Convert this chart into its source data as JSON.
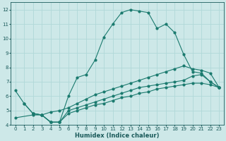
{
  "xlabel": "Humidex (Indice chaleur)",
  "xlim": [
    -0.5,
    23.5
  ],
  "ylim": [
    4,
    12.5
  ],
  "yticks": [
    4,
    5,
    6,
    7,
    8,
    9,
    10,
    11,
    12
  ],
  "xticks": [
    0,
    1,
    2,
    3,
    4,
    5,
    6,
    7,
    8,
    9,
    10,
    11,
    12,
    13,
    14,
    15,
    16,
    17,
    18,
    19,
    20,
    21,
    22,
    23
  ],
  "bg_color": "#cde8e8",
  "grid_color": "#b0d8d8",
  "line_color": "#1a7a6e",
  "lines": [
    {
      "x": [
        0,
        1,
        2,
        3,
        4,
        5,
        6,
        7,
        8,
        9,
        10,
        11,
        12,
        13,
        14,
        15,
        16,
        17,
        18,
        19,
        20,
        21,
        22,
        23
      ],
      "y": [
        6.4,
        5.5,
        4.8,
        4.7,
        4.2,
        4.2,
        6.0,
        7.3,
        7.5,
        8.5,
        10.1,
        11.0,
        11.8,
        12.0,
        11.9,
        11.8,
        10.7,
        11.0,
        10.4,
        8.9,
        7.7,
        7.6,
        7.0,
        6.6
      ]
    },
    {
      "x": [
        0,
        2,
        3,
        4,
        5,
        6,
        7,
        8,
        9,
        10,
        11,
        12,
        13,
        14,
        15,
        16,
        17,
        18,
        19,
        20,
        21,
        22,
        23
      ],
      "y": [
        4.5,
        4.7,
        4.7,
        4.9,
        5.0,
        5.2,
        5.5,
        5.8,
        6.1,
        6.3,
        6.5,
        6.7,
        6.9,
        7.1,
        7.3,
        7.5,
        7.7,
        7.9,
        8.1,
        7.9,
        7.8,
        7.6,
        6.6
      ]
    },
    {
      "x": [
        1,
        2,
        3,
        4,
        5,
        6,
        7,
        8,
        9,
        10,
        11,
        12,
        13,
        14,
        15,
        16,
        17,
        18,
        19,
        20,
        21,
        22,
        23
      ],
      "y": [
        5.5,
        4.8,
        4.7,
        4.2,
        4.2,
        5.0,
        5.2,
        5.4,
        5.6,
        5.8,
        6.0,
        6.2,
        6.4,
        6.6,
        6.7,
        6.8,
        6.9,
        7.0,
        7.1,
        7.4,
        7.5,
        7.0,
        6.6
      ]
    },
    {
      "x": [
        2,
        3,
        4,
        5,
        6,
        7,
        8,
        9,
        10,
        11,
        12,
        13,
        14,
        15,
        16,
        17,
        18,
        19,
        20,
        21,
        22,
        23
      ],
      "y": [
        4.8,
        4.7,
        4.2,
        4.2,
        4.8,
        5.0,
        5.2,
        5.4,
        5.5,
        5.7,
        5.9,
        6.0,
        6.2,
        6.3,
        6.5,
        6.6,
        6.7,
        6.8,
        6.9,
        6.9,
        6.8,
        6.6
      ]
    }
  ],
  "xlabel_fontsize": 6,
  "xlabel_color": "#1a5a5a",
  "tick_fontsize": 5,
  "tick_color": "#1a5a5a"
}
